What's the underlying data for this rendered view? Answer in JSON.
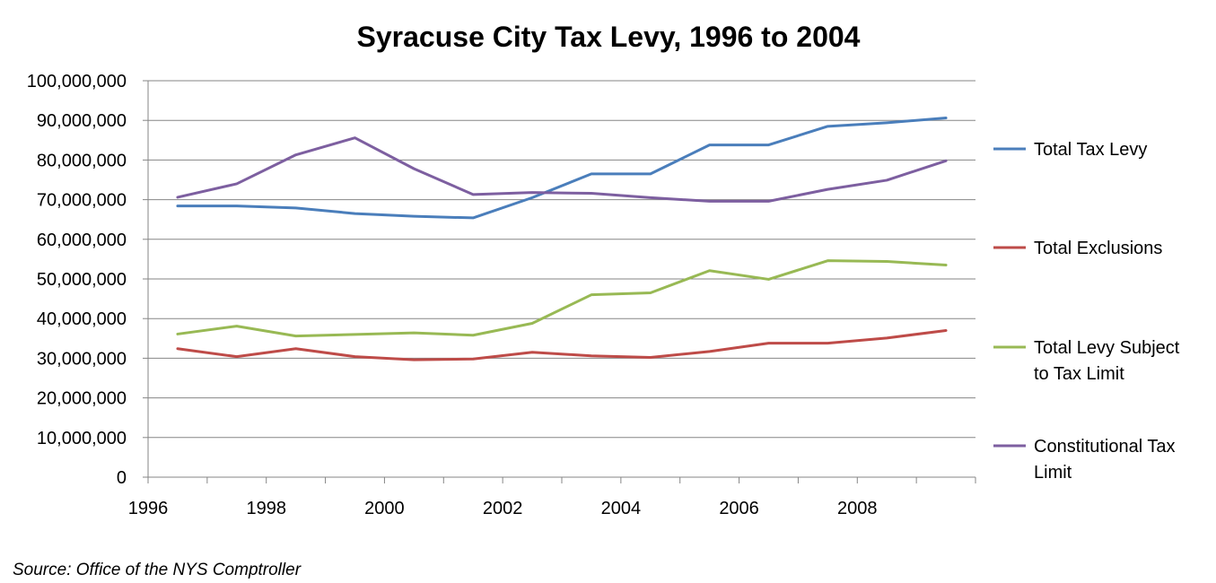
{
  "chart_data": {
    "type": "line",
    "title": "Syracuse City Tax Levy, 1996 to 2004",
    "x": [
      1996,
      1997,
      1998,
      1999,
      2000,
      2001,
      2002,
      2003,
      2004,
      2005,
      2006,
      2007,
      2008,
      2009
    ],
    "x_tick_labels": [
      "1996",
      "1998",
      "2000",
      "2002",
      "2004",
      "2006",
      "2008"
    ],
    "y_tick_labels": [
      "0",
      "10,000,000",
      "20,000,000",
      "30,000,000",
      "40,000,000",
      "50,000,000",
      "60,000,000",
      "70,000,000",
      "80,000,000",
      "90,000,000",
      "100,000,000"
    ],
    "ylim": [
      0,
      100000000
    ],
    "grid": "horizontal",
    "legend_position": "right",
    "series": [
      {
        "name": "Total Tax Levy",
        "color": "#4a7ebb",
        "legend_lines": [
          "Total Tax Levy"
        ],
        "values": [
          68400000,
          68400000,
          67900000,
          66500000,
          65800000,
          65400000,
          70500000,
          76500000,
          76500000,
          83800000,
          83800000,
          88500000,
          89400000,
          90600000
        ]
      },
      {
        "name": "Total Exclusions",
        "color": "#be4b48",
        "legend_lines": [
          "Total Exclusions"
        ],
        "values": [
          32400000,
          30400000,
          32400000,
          30400000,
          29600000,
          29800000,
          31500000,
          30600000,
          30200000,
          31700000,
          33800000,
          33800000,
          35100000,
          37000000
        ]
      },
      {
        "name": "Total Levy Subject to Tax Limit",
        "color": "#98b954",
        "legend_lines": [
          "Total Levy Subject",
          "to Tax Limit"
        ],
        "values": [
          36100000,
          38100000,
          35600000,
          36000000,
          36400000,
          35800000,
          38800000,
          46000000,
          46500000,
          52100000,
          49900000,
          54600000,
          54400000,
          53500000
        ]
      },
      {
        "name": "Constitutional Tax Limit",
        "color": "#7d5fa0",
        "legend_lines": [
          "Constitutional Tax",
          "Limit"
        ],
        "values": [
          70600000,
          74000000,
          81300000,
          85600000,
          77800000,
          71300000,
          71800000,
          71600000,
          70500000,
          69600000,
          69600000,
          72600000,
          74900000,
          79800000
        ]
      }
    ]
  },
  "source_note": "Source:  Office of the NYS Comptroller"
}
